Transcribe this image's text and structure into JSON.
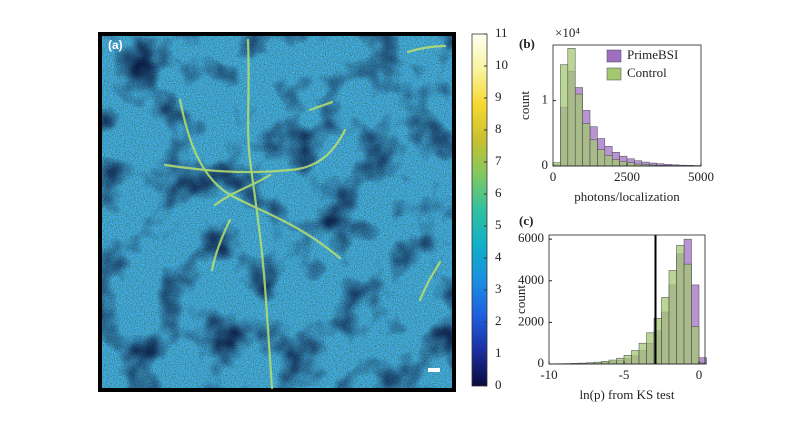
{
  "chart_data": [
    {
      "type": "colorbar",
      "title": "(a)",
      "ylim": [
        0,
        11
      ],
      "yticks": [
        0,
        1,
        2,
        3,
        4,
        5,
        6,
        7,
        8,
        9,
        10,
        11
      ],
      "colors": [
        "#0a0a3c",
        "#1a2fa0",
        "#1f5fe0",
        "#1a8fe0",
        "#10b0c8",
        "#30c0a0",
        "#80c860",
        "#c8c030",
        "#f8d830",
        "#f8f4a0",
        "#fffff0"
      ]
    },
    {
      "type": "histogram",
      "title": "(b)",
      "ylabel_exponent": "×10⁴",
      "xlabel": "photons/localization",
      "ylabel": "count",
      "bins": [
        0,
        250,
        500,
        750,
        1000,
        1250,
        1500,
        1750,
        2000,
        2250,
        2500,
        2750,
        3000,
        3250,
        3500,
        3750,
        4000,
        4250,
        4500,
        4750,
        5000
      ],
      "xlim": [
        0,
        5000
      ],
      "xticks": [
        0,
        2500,
        5000
      ],
      "ylim": [
        0,
        1.85
      ],
      "yticks": [
        0,
        1
      ],
      "legend": "upper right",
      "series": [
        {
          "name": "PrimeBSI",
          "color": "#a070c0",
          "values": [
            0.02,
            0.9,
            1.45,
            1.2,
            0.85,
            0.6,
            0.42,
            0.3,
            0.21,
            0.15,
            0.11,
            0.08,
            0.06,
            0.045,
            0.035,
            0.025,
            0.018,
            0.013,
            0.01,
            0.007
          ]
        },
        {
          "name": "Control",
          "color": "#a4c870",
          "values": [
            0.05,
            1.55,
            1.8,
            1.1,
            0.65,
            0.4,
            0.25,
            0.16,
            0.1,
            0.07,
            0.05,
            0.03,
            0.02,
            0.015,
            0.01,
            0.008,
            0.006,
            0.004,
            0.003,
            0.002
          ]
        }
      ]
    },
    {
      "type": "histogram",
      "title": "(c)",
      "xlabel": "ln(p) from KS test",
      "ylabel": "count",
      "bins": [
        -10,
        -9.5,
        -9,
        -8.5,
        -8,
        -7.5,
        -7,
        -6.5,
        -6,
        -5.5,
        -5,
        -4.5,
        -4,
        -3.5,
        -3,
        -2.5,
        -2,
        -1.5,
        -1,
        -0.5,
        0,
        0.5
      ],
      "xlim": [
        -10,
        0.4
      ],
      "xticks": [
        -10,
        -5,
        0
      ],
      "ylim": [
        0,
        6200
      ],
      "yticks": [
        0,
        2000,
        4000,
        6000
      ],
      "vline": -2.9,
      "series": [
        {
          "color": "#a070c0",
          "values": [
            5,
            8,
            12,
            18,
            25,
            35,
            50,
            75,
            110,
            170,
            260,
            400,
            650,
            1000,
            1600,
            2500,
            3800,
            5300,
            6000,
            3800,
            300
          ]
        },
        {
          "color": "#a4c870",
          "values": [
            10,
            15,
            20,
            30,
            45,
            60,
            90,
            130,
            190,
            280,
            420,
            650,
            1000,
            1500,
            2200,
            3200,
            4500,
            5700,
            4800,
            1800,
            50
          ]
        }
      ]
    }
  ]
}
